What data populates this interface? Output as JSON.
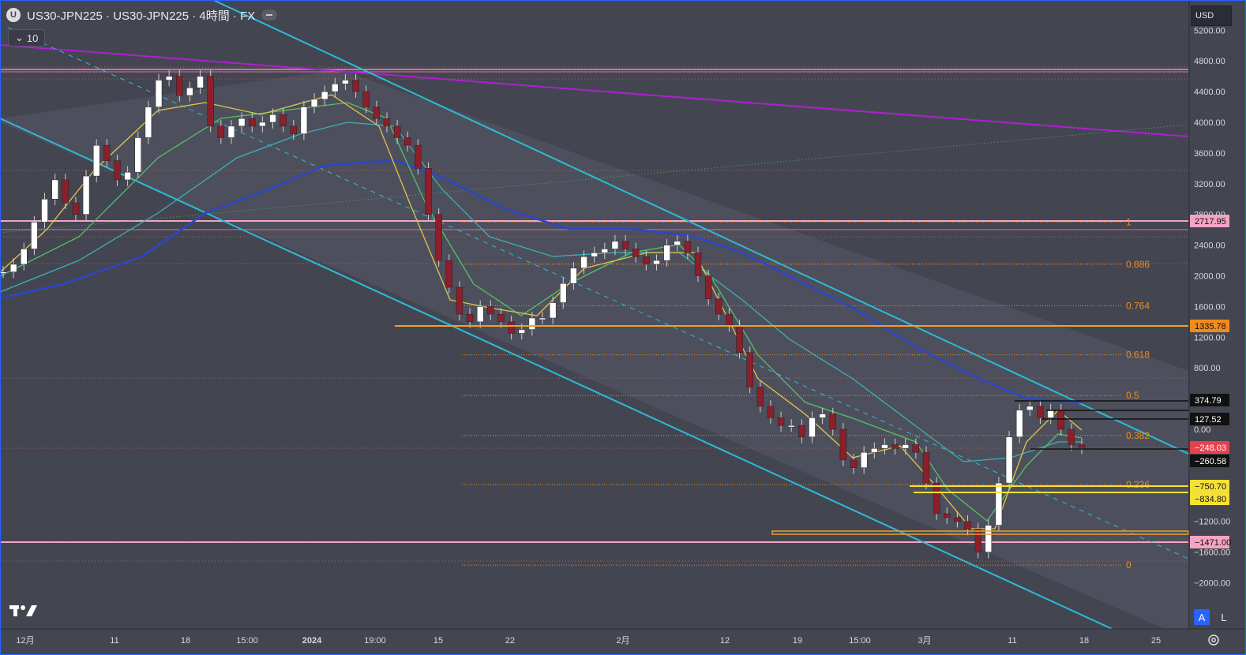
{
  "header": {
    "logo_letter": "U",
    "title": "US30-JPN225 · US30-JPN225 · 4時間 · FX"
  },
  "indicator_toggle": {
    "label": "10"
  },
  "currency": {
    "label": "USD"
  },
  "colors": {
    "background": "#434651",
    "channel": "#2bbcd8",
    "long_trend": "#b01fd1",
    "ma_blue": "#2d45c9",
    "ma_cyan": "#3bb0b8",
    "ma_green": "#52c26a",
    "ma_yellow": "#e3c44a",
    "fib": "#f08c1e",
    "pink_level": "#f4a3c4",
    "up_candle": "#ffffff",
    "down_candle": "#8b1f2b"
  },
  "chart_data": {
    "type": "candlestick",
    "symbol": "US30-JPN225",
    "timeframe": "4時間",
    "ylim": [
      -2300,
      5400
    ],
    "price_ticks": [
      5200,
      4800,
      4400,
      4000,
      3600,
      3200,
      2800,
      2400,
      2000,
      1600,
      1200,
      800,
      0,
      -1200,
      -1600,
      -2000
    ],
    "price_tick_labels": [
      "5200.00",
      "4800.00",
      "4400.00",
      "4000.00",
      "3600.00",
      "3200.00",
      "2800.00",
      "2400.00",
      "2000.00",
      "1600.00",
      "1200.00",
      "800.00",
      "0.00",
      "−1200.00",
      "−1600.00",
      "−2000.00"
    ],
    "time_ticks": [
      "12月",
      "11",
      "18",
      "15:00",
      "2024",
      "19:00",
      "15",
      "22",
      "2月",
      "12",
      "19",
      "15:00",
      "3月",
      "11",
      "18",
      "25"
    ],
    "price_labels": [
      {
        "text": "2717.95",
        "value": 2717.95,
        "style": "pink"
      },
      {
        "text": "1335.78",
        "value": 1335.78,
        "style": "orange"
      },
      {
        "text": "374.79",
        "value": 374.79,
        "style": "black"
      },
      {
        "text": "127.52",
        "value": 127.52,
        "style": "black"
      },
      {
        "text": "−248.03",
        "value": -248.03,
        "style": "red"
      },
      {
        "text": "−260.58",
        "value": -260.58,
        "style": "black"
      },
      {
        "text": "−750.70",
        "value": -750.7,
        "style": "yellow"
      },
      {
        "text": "−834.80",
        "value": -834.8,
        "style": "yellow"
      },
      {
        "text": "−1471.00",
        "value": -1471.0,
        "style": "pink"
      }
    ],
    "fib_levels": [
      {
        "label": "1",
        "value": 2700
      },
      {
        "label": "0.886",
        "value": 2150
      },
      {
        "label": "0.764",
        "value": 1610
      },
      {
        "label": "0.618",
        "value": 970
      },
      {
        "label": "0.5",
        "value": 440
      },
      {
        "label": "0.382",
        "value": -80
      },
      {
        "label": "0.236",
        "value": -720
      },
      {
        "label": "0",
        "value": -1770
      }
    ],
    "close_series": [
      2050,
      2150,
      2350,
      2700,
      3000,
      3250,
      2950,
      2800,
      3300,
      3700,
      3500,
      3250,
      3350,
      3800,
      4200,
      4550,
      4600,
      4350,
      4450,
      4600,
      3950,
      3800,
      3950,
      4050,
      3950,
      4000,
      4100,
      3950,
      3850,
      4200,
      4300,
      4400,
      4500,
      4550,
      4400,
      4200,
      4050,
      3950,
      3800,
      3700,
      3400,
      2800,
      2200,
      1850,
      1500,
      1400,
      1600,
      1500,
      1400,
      1250,
      1300,
      1450,
      1450,
      1650,
      1900,
      2100,
      2250,
      2300,
      2350,
      2450,
      2350,
      2250,
      2150,
      2200,
      2400,
      2450,
      2300,
      2000,
      1700,
      1500,
      1350,
      1000,
      550,
      300,
      150,
      50,
      50,
      -100,
      150,
      200,
      0,
      -400,
      -500,
      -300,
      -250,
      -200,
      -250,
      -200,
      -300,
      -700,
      -1100,
      -1150,
      -1200,
      -1300,
      -1600,
      -1250,
      -700,
      -100,
      250,
      300,
      150,
      250,
      0,
      -200,
      -240
    ]
  },
  "toolbar": {
    "auto_label": "A",
    "log_label": "L"
  }
}
